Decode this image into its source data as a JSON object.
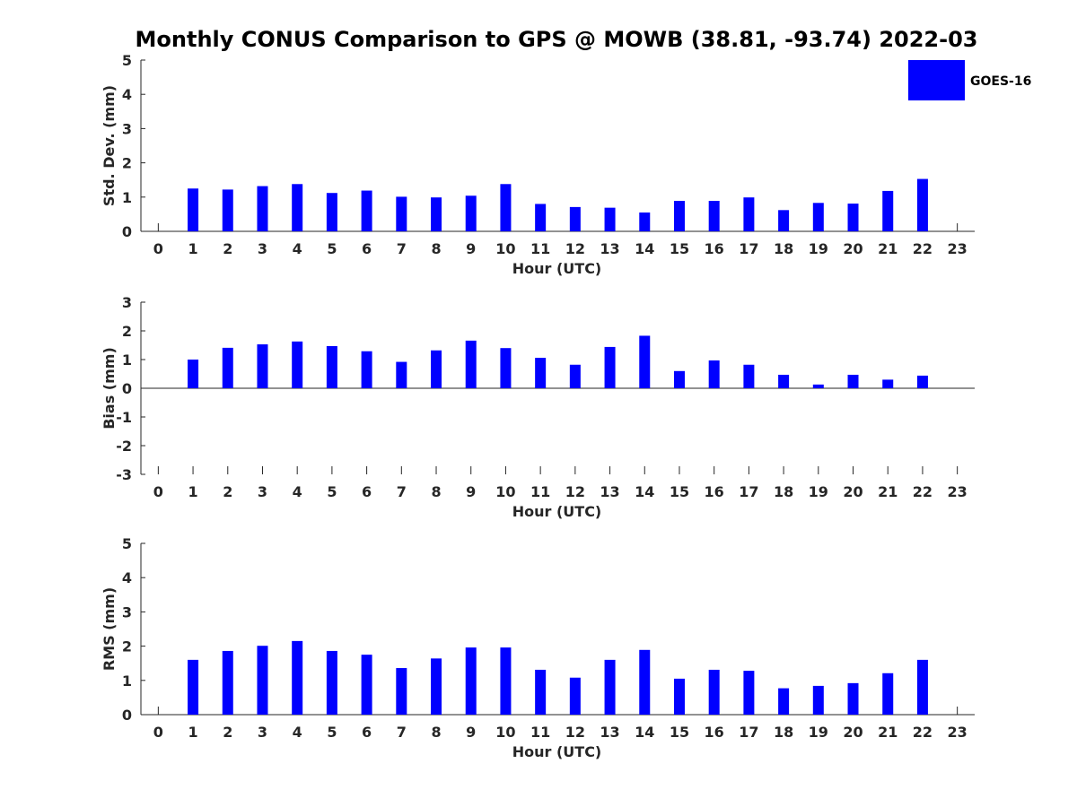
{
  "title": "Monthly CONUS Comparison to GPS @ MOWB (38.81, -93.74) 2022-03",
  "legend": {
    "label": "GOES-16",
    "color": "#0000ff"
  },
  "chart_data": [
    {
      "type": "bar",
      "x": [
        1,
        2,
        3,
        4,
        5,
        6,
        7,
        8,
        9,
        10,
        11,
        12,
        13,
        14,
        15,
        16,
        17,
        18,
        19,
        20,
        21,
        22
      ],
      "xticks": [
        0,
        1,
        2,
        3,
        4,
        5,
        6,
        7,
        8,
        9,
        10,
        11,
        12,
        13,
        14,
        15,
        16,
        17,
        18,
        19,
        20,
        21,
        22,
        23
      ],
      "xlim": [
        -0.5,
        23.5
      ],
      "xlabel": "Hour (UTC)",
      "ylabel": "Std. Dev. (mm)",
      "ylim": [
        0,
        5
      ],
      "yticks": [
        0,
        1,
        2,
        3,
        4,
        5
      ],
      "legend": "top-right",
      "series": [
        {
          "name": "GOES-16",
          "color": "#0000ff",
          "values": [
            1.25,
            1.22,
            1.32,
            1.38,
            1.12,
            1.19,
            1.01,
            0.99,
            1.04,
            1.38,
            0.8,
            0.71,
            0.69,
            0.55,
            0.89,
            0.89,
            0.99,
            0.62,
            0.83,
            0.81,
            1.18,
            1.53
          ]
        }
      ]
    },
    {
      "type": "bar",
      "x": [
        1,
        2,
        3,
        4,
        5,
        6,
        7,
        8,
        9,
        10,
        11,
        12,
        13,
        14,
        15,
        16,
        17,
        18,
        19,
        20,
        21,
        22
      ],
      "xticks": [
        0,
        1,
        2,
        3,
        4,
        5,
        6,
        7,
        8,
        9,
        10,
        11,
        12,
        13,
        14,
        15,
        16,
        17,
        18,
        19,
        20,
        21,
        22,
        23
      ],
      "xlim": [
        -0.5,
        23.5
      ],
      "xlabel": "Hour (UTC)",
      "ylabel": "Bias (mm)",
      "ylim": [
        -3,
        3
      ],
      "yticks": [
        -3,
        -2,
        -1,
        0,
        1,
        2,
        3
      ],
      "series": [
        {
          "name": "GOES-16",
          "color": "#0000ff",
          "values": [
            1.0,
            1.41,
            1.53,
            1.63,
            1.47,
            1.29,
            0.92,
            1.32,
            1.66,
            1.4,
            1.06,
            0.82,
            1.44,
            1.83,
            0.6,
            0.97,
            0.82,
            0.47,
            0.13,
            0.47,
            0.3,
            0.44
          ]
        }
      ]
    },
    {
      "type": "bar",
      "x": [
        1,
        2,
        3,
        4,
        5,
        6,
        7,
        8,
        9,
        10,
        11,
        12,
        13,
        14,
        15,
        16,
        17,
        18,
        19,
        20,
        21,
        22
      ],
      "xticks": [
        0,
        1,
        2,
        3,
        4,
        5,
        6,
        7,
        8,
        9,
        10,
        11,
        12,
        13,
        14,
        15,
        16,
        17,
        18,
        19,
        20,
        21,
        22,
        23
      ],
      "xlim": [
        -0.5,
        23.5
      ],
      "xlabel": "Hour (UTC)",
      "ylabel": "RMS (mm)",
      "ylim": [
        0,
        5
      ],
      "yticks": [
        0,
        1,
        2,
        3,
        4,
        5
      ],
      "series": [
        {
          "name": "GOES-16",
          "color": "#0000ff",
          "values": [
            1.6,
            1.86,
            2.01,
            2.15,
            1.86,
            1.75,
            1.36,
            1.64,
            1.96,
            1.96,
            1.31,
            1.08,
            1.6,
            1.89,
            1.05,
            1.31,
            1.28,
            0.77,
            0.84,
            0.92,
            1.21,
            1.6
          ]
        }
      ]
    }
  ]
}
